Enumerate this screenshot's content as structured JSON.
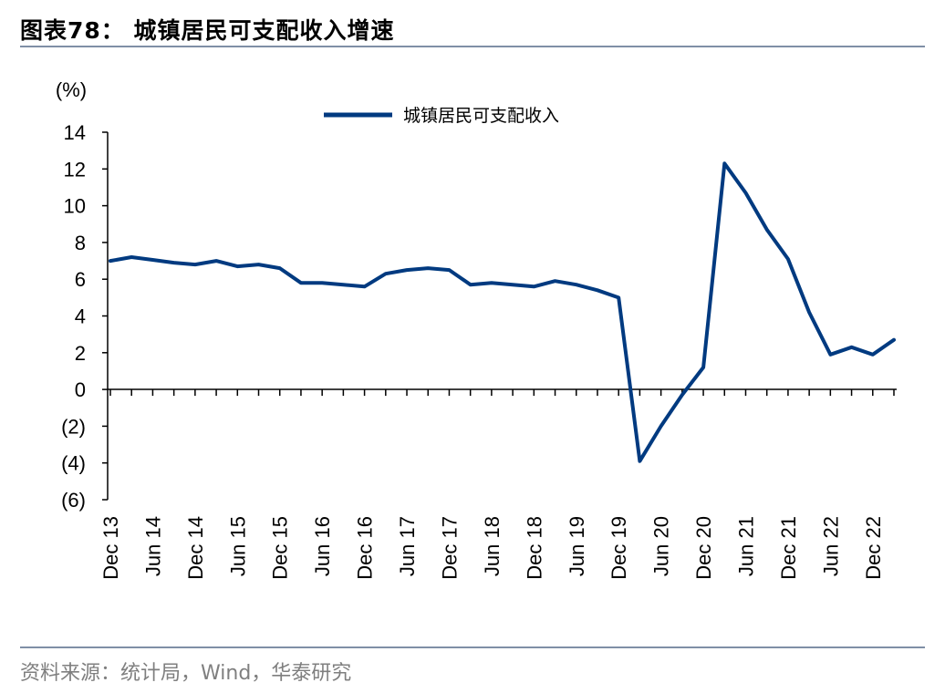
{
  "header": {
    "title": "图表78：  城镇居民可支配收入增速"
  },
  "footer": {
    "source": "资料来源：统计局，Wind，华泰研究"
  },
  "colors": {
    "series": "#003a80",
    "axis": "#000000",
    "rule": "#7f8fa6",
    "source_text": "#7f7f7f"
  },
  "chart_data": {
    "type": "line",
    "y_unit_label": "(%)",
    "ylim": [
      -6,
      14
    ],
    "y_ticks": [
      14,
      12,
      10,
      8,
      6,
      4,
      2,
      0,
      -2,
      -4,
      -6
    ],
    "y_tick_labels": [
      "14",
      "12",
      "10",
      "8",
      "6",
      "4",
      "2",
      "0",
      "(2)",
      "(4)",
      "(6)"
    ],
    "grid": false,
    "legend_position": "top-center",
    "x_labels": [
      "Dec 13",
      "Jun 14",
      "Dec 14",
      "Jun 15",
      "Dec 15",
      "Jun 16",
      "Dec 16",
      "Jun 17",
      "Dec 17",
      "Jun 18",
      "Dec 18",
      "Jun 19",
      "Dec 19",
      "Jun 20",
      "Dec 20",
      "Jun 21",
      "Dec 21",
      "Jun 22",
      "Dec 22"
    ],
    "x_label_index": [
      0,
      2,
      4,
      6,
      8,
      10,
      12,
      14,
      16,
      18,
      20,
      22,
      24,
      26,
      28,
      30,
      32,
      34,
      36
    ],
    "categories": [
      "2013Q4",
      "2014Q1",
      "2014Q2",
      "2014Q3",
      "2014Q4",
      "2015Q1",
      "2015Q2",
      "2015Q3",
      "2015Q4",
      "2016Q1",
      "2016Q2",
      "2016Q3",
      "2016Q4",
      "2017Q1",
      "2017Q2",
      "2017Q3",
      "2017Q4",
      "2018Q1",
      "2018Q2",
      "2018Q3",
      "2018Q4",
      "2019Q1",
      "2019Q2",
      "2019Q3",
      "2019Q4",
      "2020Q1",
      "2020Q2",
      "2020Q3",
      "2020Q4",
      "2021Q1",
      "2021Q2",
      "2021Q3",
      "2021Q4",
      "2022Q1",
      "2022Q2",
      "2022Q3",
      "2022Q4",
      "2023Q1"
    ],
    "series": [
      {
        "name": "城镇居民可支配收入",
        "values": [
          7.0,
          7.2,
          7.05,
          6.9,
          6.8,
          7.0,
          6.7,
          6.8,
          6.6,
          5.8,
          5.8,
          5.7,
          5.6,
          6.3,
          6.5,
          6.6,
          6.5,
          5.7,
          5.8,
          5.7,
          5.6,
          5.9,
          5.7,
          5.4,
          5.0,
          -3.9,
          -2.0,
          -0.3,
          1.2,
          12.3,
          10.7,
          8.7,
          7.1,
          4.2,
          1.9,
          2.3,
          1.9,
          2.7
        ]
      }
    ]
  }
}
